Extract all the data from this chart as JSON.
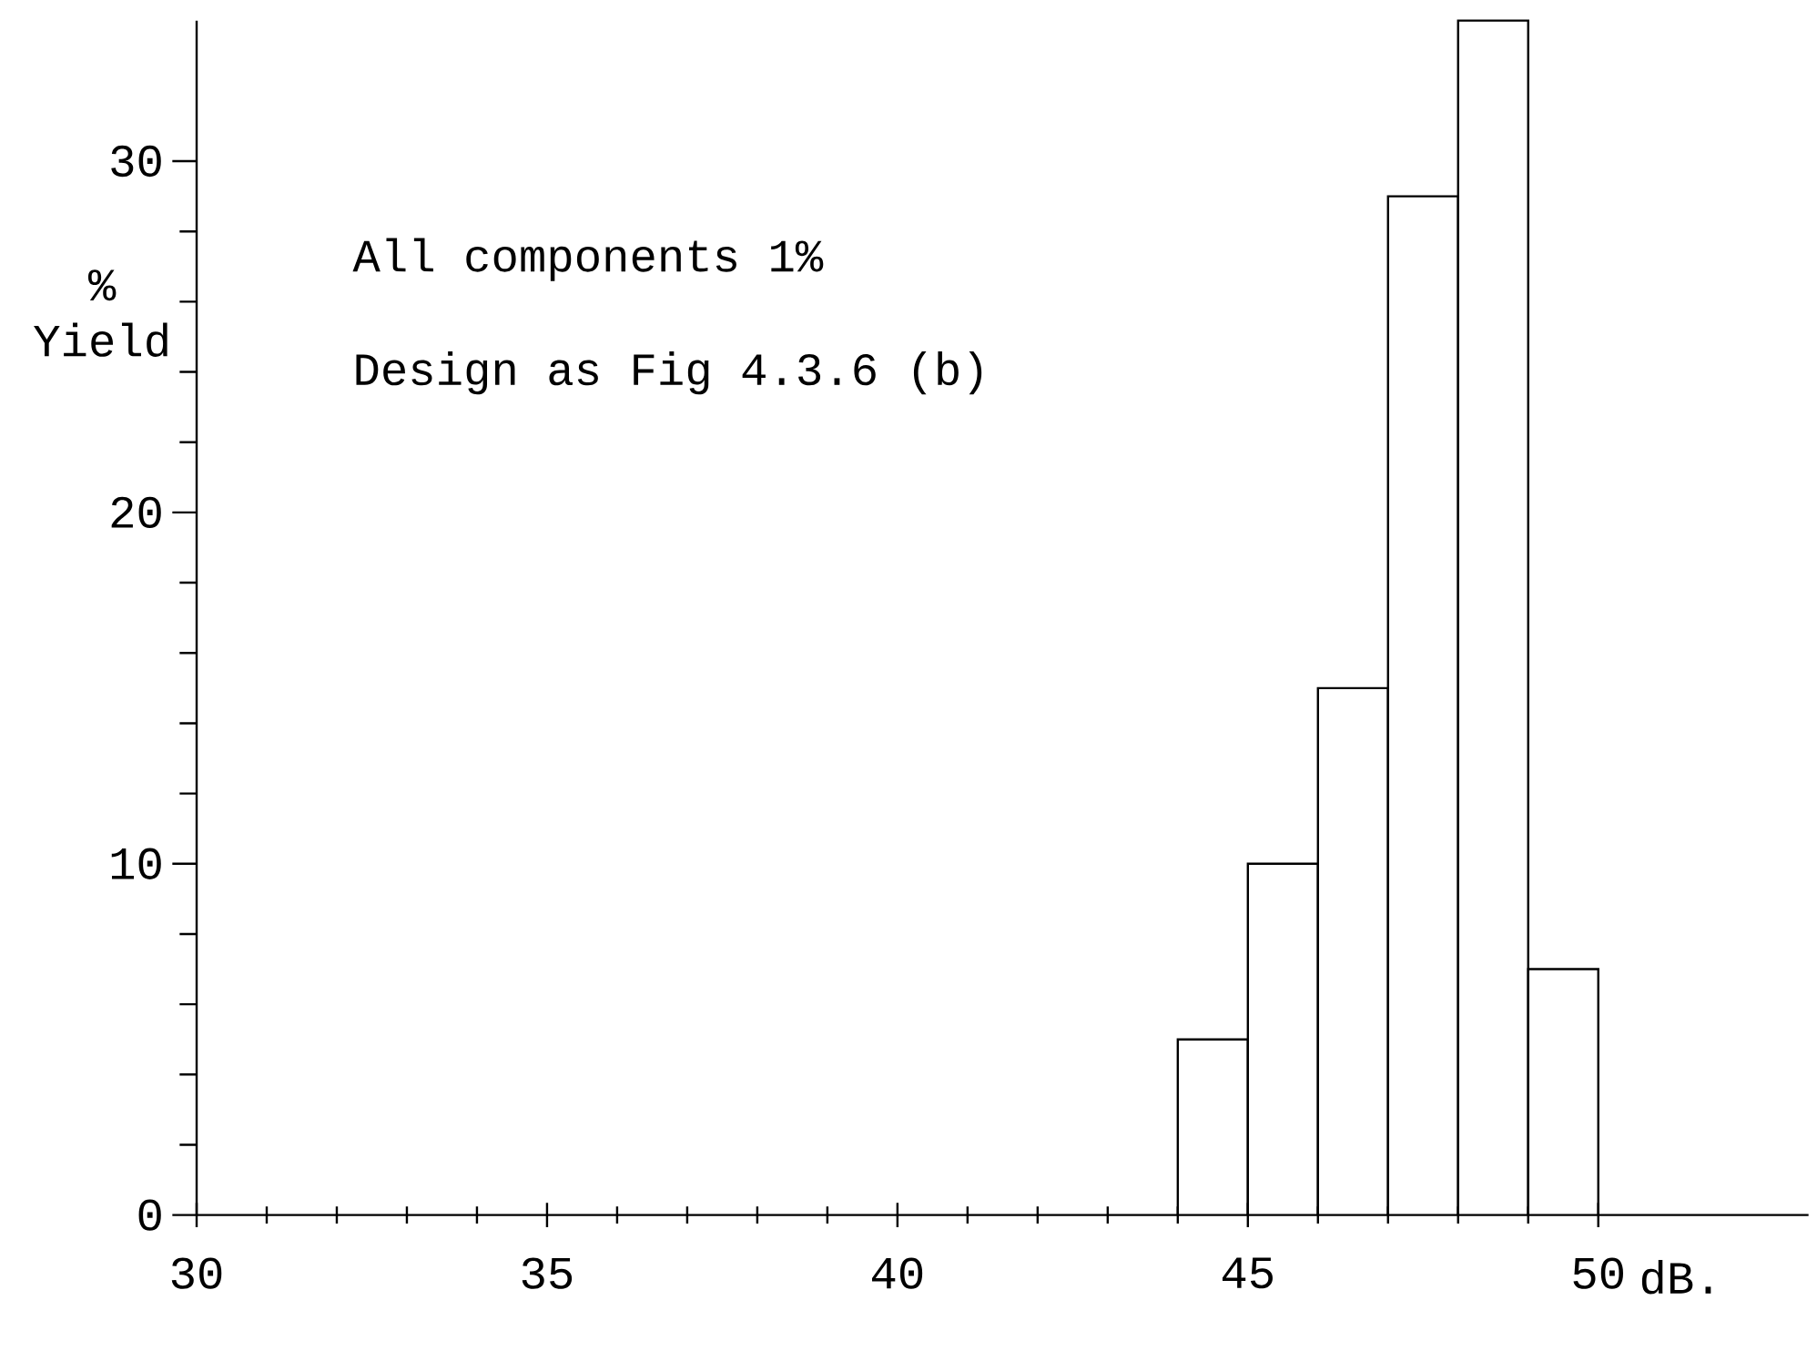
{
  "chart_data": {
    "type": "histogram",
    "bins": [
      44,
      45,
      46,
      47,
      48,
      49,
      50
    ],
    "values": [
      5,
      10,
      15,
      29,
      34,
      7
    ],
    "color": "#000000",
    "xlabel": "dB.",
    "ylabel": "% Yield",
    "xlim": [
      30,
      53
    ],
    "ylim": [
      0,
      34
    ],
    "xticks": [
      30,
      35,
      40,
      45,
      50
    ],
    "yticks": [
      0,
      10,
      20,
      30
    ],
    "annotations": [
      "All components 1%",
      "Design as Fig 4.3.6 (b)"
    ]
  }
}
